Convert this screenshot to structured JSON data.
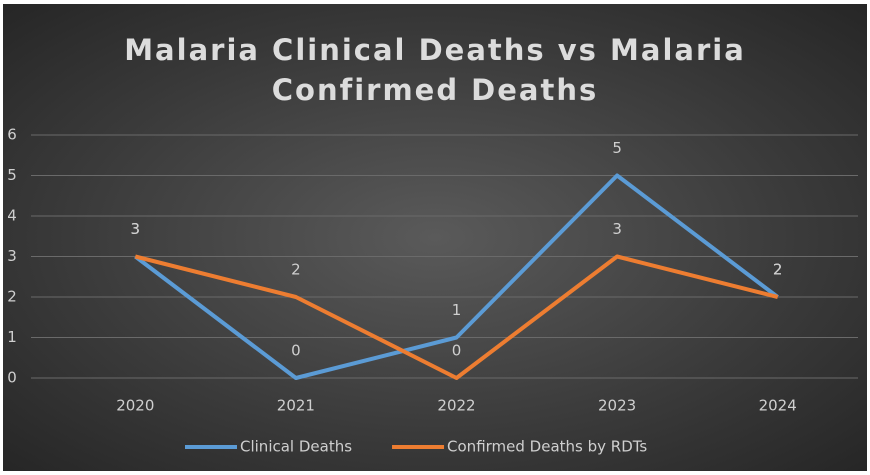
{
  "chart_data": {
    "type": "line",
    "title": "Malaria Clinical Deaths vs Malaria Confirmed Deaths",
    "categories": [
      "2020",
      "2021",
      "2022",
      "2023",
      "2024"
    ],
    "series": [
      {
        "name": "Clinical Deaths",
        "color": "#5b9bd5",
        "values": [
          3,
          0,
          1,
          5,
          2
        ]
      },
      {
        "name": "Confirmed Deaths by RDTs",
        "color": "#ed7d31",
        "values": [
          3,
          2,
          0,
          3,
          2
        ]
      }
    ],
    "ylim": [
      0,
      6
    ],
    "yticks": [
      0,
      1,
      2,
      3,
      4,
      5,
      6
    ],
    "grid": true,
    "legend": "bottom"
  }
}
